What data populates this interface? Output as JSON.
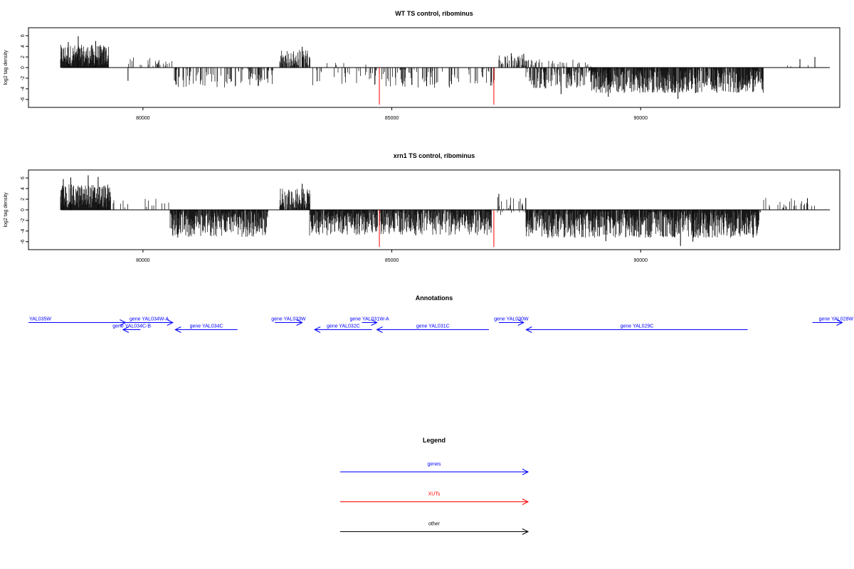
{
  "chart_data": [
    {
      "type": "bar",
      "title": "WT TS control, ribominus",
      "xlabel": "",
      "ylabel": "log2 tag density",
      "xlim": [
        77700,
        94000
      ],
      "ylim": [
        -7.5,
        7.5
      ],
      "xticks": [
        80000,
        85000,
        90000
      ],
      "yticks": [
        -6,
        -4,
        -2,
        0,
        2,
        4,
        6
      ],
      "xut_markers": [
        84750,
        87050
      ],
      "marker_color": "#ff0000",
      "bar_color": "#000000",
      "segments": [
        {
          "x0": 78350,
          "x1": 79300,
          "lo": 0,
          "hi": 4,
          "dense": 1.0
        },
        {
          "x0": 79700,
          "x1": 80700,
          "lo": -0.5,
          "hi": 1.6,
          "dense": 0.12
        },
        {
          "x0": 80600,
          "x1": 82600,
          "lo": -3.5,
          "hi": 0.5,
          "dense": 0.28
        },
        {
          "x0": 82750,
          "x1": 83350,
          "lo": 0,
          "hi": 3,
          "dense": 0.7
        },
        {
          "x0": 83400,
          "x1": 84700,
          "lo": -3.5,
          "hi": 1.2,
          "dense": 0.18
        },
        {
          "x0": 84750,
          "x1": 87050,
          "lo": -3.5,
          "hi": 0.3,
          "dense": 0.22
        },
        {
          "x0": 87150,
          "x1": 87700,
          "lo": 0,
          "hi": 2.2,
          "dense": 0.45
        },
        {
          "x0": 87700,
          "x1": 89000,
          "lo": -4,
          "hi": 1.6,
          "dense": 0.75
        },
        {
          "x0": 89000,
          "x1": 92450,
          "lo": -4.5,
          "hi": 0.5,
          "dense": 0.85
        },
        {
          "x0": 92500,
          "x1": 93400,
          "lo": 0,
          "hi": 0.5,
          "dense": 0.04
        }
      ],
      "spikes": [
        {
          "x": 78700,
          "y": 5.9
        },
        {
          "x": 78500,
          "y": 4.8
        },
        {
          "x": 79050,
          "y": 5.0
        },
        {
          "x": 79700,
          "y": -2.5
        },
        {
          "x": 80650,
          "y": -2.6
        },
        {
          "x": 83200,
          "y": 3.9
        },
        {
          "x": 83500,
          "y": -2.6
        },
        {
          "x": 85700,
          "y": -3.5
        },
        {
          "x": 86200,
          "y": -3.1
        },
        {
          "x": 87400,
          "y": 2.7
        },
        {
          "x": 87650,
          "y": 2.6
        },
        {
          "x": 88400,
          "y": -5.0
        },
        {
          "x": 89350,
          "y": -5.5
        },
        {
          "x": 90750,
          "y": -5.9
        },
        {
          "x": 91100,
          "y": -4.8
        },
        {
          "x": 93200,
          "y": 1.6
        },
        {
          "x": 93500,
          "y": 2.0
        }
      ]
    },
    {
      "type": "bar",
      "title": "xrn1 TS control, ribominus",
      "xlabel": "",
      "ylabel": "log2 tag density",
      "xlim": [
        77700,
        94000
      ],
      "ylim": [
        -7.5,
        7.5
      ],
      "xticks": [
        80000,
        85000,
        90000
      ],
      "yticks": [
        -6,
        -4,
        -2,
        0,
        2,
        4,
        6
      ],
      "xut_markers": [
        84750,
        87050
      ],
      "marker_color": "#ff0000",
      "bar_color": "#000000",
      "segments": [
        {
          "x0": 78350,
          "x1": 79350,
          "lo": 0,
          "hi": 4.5,
          "dense": 1.0
        },
        {
          "x0": 79350,
          "x1": 80550,
          "lo": -0.5,
          "hi": 1.8,
          "dense": 0.1
        },
        {
          "x0": 80550,
          "x1": 82500,
          "lo": -4.8,
          "hi": 0.2,
          "dense": 0.9
        },
        {
          "x0": 82750,
          "x1": 83350,
          "lo": 0,
          "hi": 3.8,
          "dense": 0.85
        },
        {
          "x0": 83350,
          "x1": 84700,
          "lo": -4.5,
          "hi": 0.3,
          "dense": 0.9
        },
        {
          "x0": 84750,
          "x1": 87000,
          "lo": -4.5,
          "hi": 0.6,
          "dense": 0.85
        },
        {
          "x0": 87100,
          "x1": 87700,
          "lo": -1,
          "hi": 2.5,
          "dense": 0.35
        },
        {
          "x0": 87700,
          "x1": 92400,
          "lo": -5,
          "hi": 0.3,
          "dense": 0.9
        },
        {
          "x0": 92450,
          "x1": 93500,
          "lo": -0.5,
          "hi": 2,
          "dense": 0.12
        }
      ],
      "spikes": [
        {
          "x": 78400,
          "y": 5.8
        },
        {
          "x": 78550,
          "y": 6.1
        },
        {
          "x": 78900,
          "y": 6.5
        },
        {
          "x": 79100,
          "y": 6.2
        },
        {
          "x": 80700,
          "y": -5.2
        },
        {
          "x": 83200,
          "y": 4.9
        },
        {
          "x": 87150,
          "y": 3.0
        },
        {
          "x": 90800,
          "y": -6.8
        },
        {
          "x": 91050,
          "y": -6.0
        },
        {
          "x": 89300,
          "y": -5.9
        },
        {
          "x": 93350,
          "y": 2.2
        }
      ]
    }
  ],
  "annotations": {
    "title": "Annotations",
    "genes": [
      {
        "label": "YAL035W",
        "x0": 77700,
        "x1": 79650,
        "dir": "right",
        "row": 0
      },
      {
        "label": "gene YAL034W-A",
        "x0": 79650,
        "x1": 80600,
        "dir": "right",
        "row": 0
      },
      {
        "label": "gene YAL034C-B",
        "x0": 79600,
        "x1": 79950,
        "dir": "left",
        "row": 1
      },
      {
        "label": "gene YAL034C",
        "x0": 80650,
        "x1": 81900,
        "dir": "left",
        "row": 1
      },
      {
        "label": "gene YAL033W",
        "x0": 82650,
        "x1": 83200,
        "dir": "right",
        "row": 0
      },
      {
        "label": "gene YAL032C",
        "x0": 83450,
        "x1": 84600,
        "dir": "left",
        "row": 1
      },
      {
        "label": "gene YAL031W-A",
        "x0": 84400,
        "x1": 84700,
        "dir": "right",
        "row": 0
      },
      {
        "label": "gene YAL031C",
        "x0": 84700,
        "x1": 86950,
        "dir": "left",
        "row": 1
      },
      {
        "label": "gene YAL030W",
        "x0": 87150,
        "x1": 87650,
        "dir": "right",
        "row": 0
      },
      {
        "label": "gene YAL029C",
        "x0": 87700,
        "x1": 92150,
        "dir": "left",
        "row": 1
      },
      {
        "label": "gene YAL028W",
        "x0": 93450,
        "x1": 94050,
        "dir": "right",
        "row": 0
      }
    ]
  },
  "legend": {
    "title": "Legend",
    "items": [
      {
        "label": "genes",
        "color": "#0000ff"
      },
      {
        "label": "XUTs",
        "color": "#ff0000"
      },
      {
        "label": "other",
        "color": "#000000"
      }
    ]
  }
}
